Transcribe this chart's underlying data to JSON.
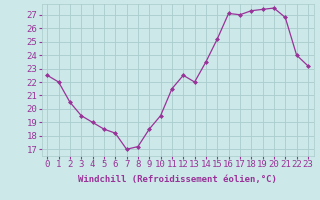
{
  "x": [
    0,
    1,
    2,
    3,
    4,
    5,
    6,
    7,
    8,
    9,
    10,
    11,
    12,
    13,
    14,
    15,
    16,
    17,
    18,
    19,
    20,
    21,
    22,
    23
  ],
  "y": [
    22.5,
    22.0,
    20.5,
    19.5,
    19.0,
    18.5,
    18.2,
    17.0,
    17.2,
    18.5,
    19.5,
    21.5,
    22.5,
    22.0,
    23.5,
    25.2,
    27.1,
    27.0,
    27.3,
    27.4,
    27.5,
    26.8,
    24.0,
    23.2
  ],
  "line_color": "#993399",
  "marker": "D",
  "marker_size": 2.0,
  "bg_color": "#cce8e8",
  "grid_color": "#aacccc",
  "xlabel": "Windchill (Refroidissement éolien,°C)",
  "ylabel_ticks": [
    17,
    18,
    19,
    20,
    21,
    22,
    23,
    24,
    25,
    26,
    27
  ],
  "ylim": [
    16.5,
    27.8
  ],
  "xlim": [
    -0.5,
    23.5
  ],
  "tick_fontsize": 6.5,
  "xlabel_fontsize": 6.5
}
